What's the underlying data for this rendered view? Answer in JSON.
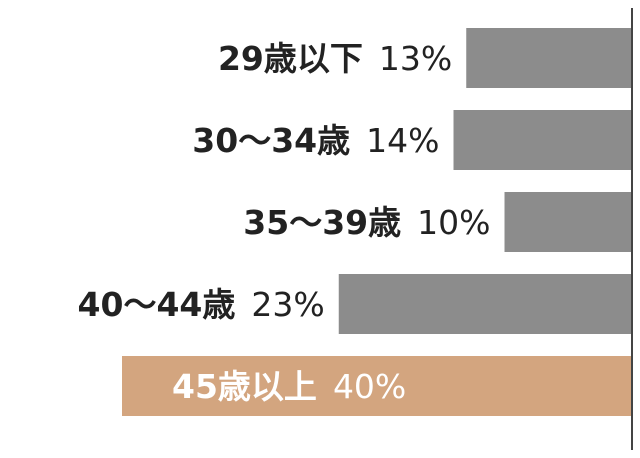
{
  "chart_data": {
    "type": "bar",
    "orientation": "horizontal",
    "title": "",
    "xlabel": "",
    "ylabel": "",
    "xlim": [
      0,
      40
    ],
    "grid": false,
    "legend": "none",
    "categories": [
      "29歳以下",
      "30～34歳",
      "35～39歳",
      "40～44歳",
      "45歳以上"
    ],
    "values": [
      13,
      14,
      10,
      23,
      40
    ],
    "value_labels": [
      "13%",
      "14%",
      "10%",
      "23%",
      "40%"
    ],
    "highlight_index": 4
  },
  "colors": {
    "bar": "#8c8c8c",
    "highlight_bar": "#d3a57f",
    "axis": "#444444",
    "text": "#222222",
    "highlight_text": "#ffffff"
  }
}
